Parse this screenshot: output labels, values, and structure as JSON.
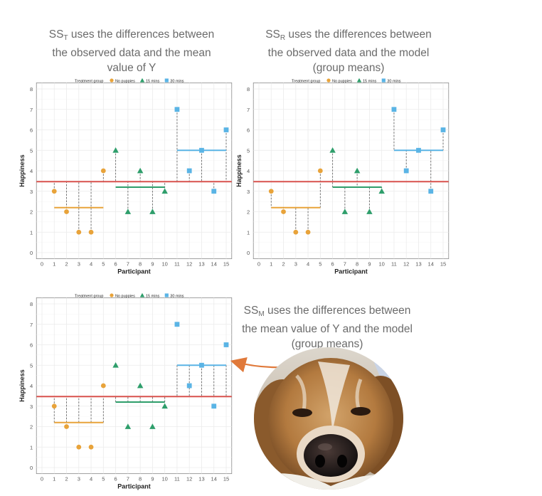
{
  "captions": {
    "total": {
      "line1_pre": "SS",
      "line1_sub": "T",
      "line1_post": " uses the differences between",
      "line2": "the observed data and the mean",
      "line3": "value of Y"
    },
    "residual": {
      "line1_pre": "SS",
      "line1_sub": "R",
      "line1_post": " uses the differences between",
      "line2": "the observed data and the model",
      "line3": "(group means)"
    },
    "model": {
      "line1_pre": "SS",
      "line1_sub": "M",
      "line1_post": " uses the differences between",
      "line2": "the mean value of Y and the model",
      "line3": "(group means)"
    }
  },
  "colors": {
    "no_puppies": "#E8A33A",
    "15_mins": "#2E9E6B",
    "30_mins": "#5AB4E5",
    "grand_mean": "#D9534F",
    "arrow": "#E0793A",
    "dashes": "#666666"
  },
  "chart_data": [
    {
      "id": "ss-total",
      "type": "scatter",
      "title": "",
      "xlabel": "Participant",
      "ylabel": "Happiness",
      "xlim": [
        0,
        15
      ],
      "ylim": [
        0,
        8
      ],
      "xticks": [
        "0",
        "1",
        "2",
        "3",
        "4",
        "5",
        "6",
        "7",
        "8",
        "9",
        "10",
        "11",
        "12",
        "13",
        "14",
        "15"
      ],
      "yticks": [
        "0",
        "1",
        "2",
        "3",
        "4",
        "5",
        "6",
        "7",
        "8"
      ],
      "grid": true,
      "legend": {
        "title": "Treatment group",
        "position": "top",
        "entries": [
          "No puppies",
          "15 mins",
          "30 mins"
        ]
      },
      "grand_mean": 3.47,
      "group_means": [
        {
          "group": "No puppies",
          "from": 1,
          "to": 5,
          "value": 2.2
        },
        {
          "group": "15 mins",
          "from": 6,
          "to": 10,
          "value": 3.2
        },
        {
          "group": "30 mins",
          "from": 11,
          "to": 15,
          "value": 5.0
        }
      ],
      "series": [
        {
          "name": "No puppies",
          "shape": "circle",
          "x": [
            1,
            2,
            3,
            4,
            5
          ],
          "y": [
            3,
            2,
            1,
            1,
            4
          ]
        },
        {
          "name": "15 mins",
          "shape": "triangle",
          "x": [
            6,
            7,
            8,
            9,
            10
          ],
          "y": [
            5,
            2,
            4,
            2,
            3
          ]
        },
        {
          "name": "30 mins",
          "shape": "square",
          "x": [
            11,
            12,
            13,
            14,
            15
          ],
          "y": [
            7,
            4,
            5,
            3,
            6
          ]
        }
      ],
      "deviations": "data_to_grand_mean"
    },
    {
      "id": "ss-residual",
      "type": "scatter",
      "title": "",
      "xlabel": "Participant",
      "ylabel": "Happiness",
      "xlim": [
        0,
        15
      ],
      "ylim": [
        0,
        8
      ],
      "xticks": [
        "0",
        "1",
        "2",
        "3",
        "4",
        "5",
        "6",
        "7",
        "8",
        "9",
        "10",
        "11",
        "12",
        "13",
        "14",
        "15"
      ],
      "yticks": [
        "0",
        "1",
        "2",
        "3",
        "4",
        "5",
        "6",
        "7",
        "8"
      ],
      "grid": true,
      "legend": {
        "title": "Treatment group",
        "position": "top",
        "entries": [
          "No puppies",
          "15 mins",
          "30 mins"
        ]
      },
      "grand_mean": 3.47,
      "group_means": [
        {
          "group": "No puppies",
          "from": 1,
          "to": 5,
          "value": 2.2
        },
        {
          "group": "15 mins",
          "from": 6,
          "to": 10,
          "value": 3.2
        },
        {
          "group": "30 mins",
          "from": 11,
          "to": 15,
          "value": 5.0
        }
      ],
      "series": [
        {
          "name": "No puppies",
          "shape": "circle",
          "x": [
            1,
            2,
            3,
            4,
            5
          ],
          "y": [
            3,
            2,
            1,
            1,
            4
          ]
        },
        {
          "name": "15 mins",
          "shape": "triangle",
          "x": [
            6,
            7,
            8,
            9,
            10
          ],
          "y": [
            5,
            2,
            4,
            2,
            3
          ]
        },
        {
          "name": "30 mins",
          "shape": "square",
          "x": [
            11,
            12,
            13,
            14,
            15
          ],
          "y": [
            7,
            4,
            5,
            3,
            6
          ]
        }
      ],
      "deviations": "data_to_group_mean"
    },
    {
      "id": "ss-model",
      "type": "scatter",
      "title": "",
      "xlabel": "Participant",
      "ylabel": "Happiness",
      "xlim": [
        0,
        15
      ],
      "ylim": [
        0,
        8
      ],
      "xticks": [
        "0",
        "1",
        "2",
        "3",
        "4",
        "5",
        "6",
        "7",
        "8",
        "9",
        "10",
        "11",
        "12",
        "13",
        "14",
        "15"
      ],
      "yticks": [
        "0",
        "1",
        "2",
        "3",
        "4",
        "5",
        "6",
        "7",
        "8"
      ],
      "grid": true,
      "legend": {
        "title": "Treatment group",
        "position": "top",
        "entries": [
          "No puppies",
          "15 mins",
          "30 mins"
        ]
      },
      "grand_mean": 3.47,
      "group_means": [
        {
          "group": "No puppies",
          "from": 1,
          "to": 5,
          "value": 2.2
        },
        {
          "group": "15 mins",
          "from": 6,
          "to": 10,
          "value": 3.2
        },
        {
          "group": "30 mins",
          "from": 11,
          "to": 15,
          "value": 5.0
        }
      ],
      "series": [
        {
          "name": "No puppies",
          "shape": "circle",
          "x": [
            1,
            2,
            3,
            4,
            5
          ],
          "y": [
            3,
            2,
            1,
            1,
            4
          ]
        },
        {
          "name": "15 mins",
          "shape": "triangle",
          "x": [
            6,
            7,
            8,
            9,
            10
          ],
          "y": [
            5,
            2,
            4,
            2,
            3
          ]
        },
        {
          "name": "30 mins",
          "shape": "square",
          "x": [
            11,
            12,
            13,
            14,
            15
          ],
          "y": [
            7,
            4,
            5,
            3,
            6
          ]
        }
      ],
      "deviations": "group_mean_to_grand_mean"
    }
  ],
  "photo": {
    "subject": "cocker-spaniel-dog-photo"
  }
}
